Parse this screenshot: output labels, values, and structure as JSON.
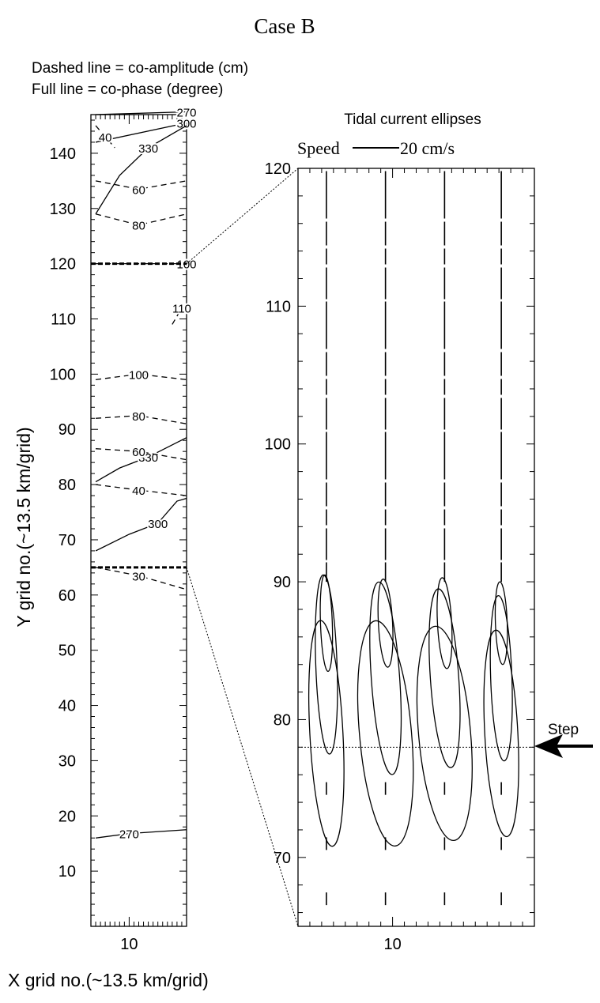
{
  "title": "Case B",
  "legend": {
    "dashed": "Dashed line = co-amplitude (cm)",
    "full": "Full line = co-phase (degree)"
  },
  "right_title": "Tidal current ellipses",
  "speed_key": {
    "label": "Speed",
    "value": "20 cm/s"
  },
  "step_label": "Step",
  "chart_data": [
    {
      "type": "contour",
      "xlabel": "X grid no.(~13.5 km/grid)",
      "ylabel": "Y grid no.(~13.5 km/grid)",
      "xlim": [
        6,
        16
      ],
      "ylim": [
        0,
        147
      ],
      "xticks": [
        10
      ],
      "yticks": [
        10,
        20,
        30,
        40,
        50,
        60,
        70,
        80,
        90,
        100,
        110,
        120,
        130,
        140
      ],
      "zoom_boundaries_y": [
        120,
        65
      ],
      "phase_contours": [
        {
          "label": "270",
          "points": [
            [
              6.5,
              147
            ],
            [
              16,
              147.5
            ]
          ]
        },
        {
          "label": "300",
          "points": [
            [
              6.5,
              142
            ],
            [
              16,
              145.5
            ]
          ]
        },
        {
          "label": "330",
          "points": [
            [
              6.5,
              129
            ],
            [
              9,
              136
            ],
            [
              12,
              141
            ],
            [
              16,
              145
            ]
          ]
        },
        {
          "label": "330",
          "points": [
            [
              6.5,
              80.5
            ],
            [
              9,
              83
            ],
            [
              12,
              85
            ],
            [
              16,
              88.5
            ]
          ]
        },
        {
          "label": "300",
          "points": [
            [
              6.5,
              68
            ],
            [
              10,
              71
            ],
            [
              13,
              73
            ],
            [
              15,
              77
            ],
            [
              16,
              77.5
            ]
          ]
        },
        {
          "label": "270",
          "points": [
            [
              6.5,
              16
            ],
            [
              10,
              16.8
            ],
            [
              16,
              17.5
            ]
          ]
        }
      ],
      "amplitude_contours": [
        {
          "label": "40",
          "points": [
            [
              6.5,
              145
            ],
            [
              7.5,
              143
            ],
            [
              8.5,
              141
            ]
          ]
        },
        {
          "label": "60",
          "points": [
            [
              6.5,
              135
            ],
            [
              11,
              133.5
            ],
            [
              16,
              135
            ]
          ]
        },
        {
          "label": "80",
          "points": [
            [
              6.5,
              129
            ],
            [
              11,
              127
            ],
            [
              16,
              129
            ]
          ]
        },
        {
          "label": "100",
          "points": [
            [
              6.5,
              120
            ],
            [
              16,
              120
            ]
          ]
        },
        {
          "label": "110",
          "points": [
            [
              14.5,
              109
            ],
            [
              15.5,
              112
            ]
          ]
        },
        {
          "label": "100",
          "points": [
            [
              6.5,
              99
            ],
            [
              11,
              100
            ],
            [
              16,
              99
            ]
          ]
        },
        {
          "label": "80",
          "points": [
            [
              6.5,
              92
            ],
            [
              11,
              92.5
            ],
            [
              16,
              91
            ]
          ]
        },
        {
          "label": "60",
          "points": [
            [
              6.5,
              86.5
            ],
            [
              11,
              86
            ],
            [
              16,
              84.5
            ]
          ]
        },
        {
          "label": "40",
          "points": [
            [
              6.5,
              80
            ],
            [
              11,
              79
            ],
            [
              16,
              78
            ]
          ]
        },
        {
          "label": "30",
          "points": [
            [
              6.5,
              65
            ],
            [
              11,
              63.5
            ],
            [
              16,
              61
            ]
          ]
        }
      ]
    },
    {
      "type": "ellipses",
      "xlim": [
        6,
        16
      ],
      "ylim": [
        65,
        120
      ],
      "xticks": [
        10
      ],
      "yticks": [
        70,
        80,
        90,
        100,
        110,
        120
      ],
      "step_y": 78,
      "scale": {
        "label": "Speed",
        "value_cm_s": 20
      },
      "columns_x": [
        7.2,
        9.7,
        12.2,
        14.6
      ],
      "ellipses": [
        {
          "x": 7.2,
          "y": 79,
          "a": 0.7,
          "b": 8.2,
          "tilt": -3
        },
        {
          "x": 7.2,
          "y": 84,
          "a": 0.45,
          "b": 6.5,
          "tilt": -2
        },
        {
          "x": 7.2,
          "y": 87,
          "a": 0.25,
          "b": 3.5,
          "tilt": -2
        },
        {
          "x": 9.7,
          "y": 79,
          "a": 1.1,
          "b": 8.2,
          "tilt": -5
        },
        {
          "x": 9.7,
          "y": 83,
          "a": 0.6,
          "b": 7.0,
          "tilt": -4
        },
        {
          "x": 9.7,
          "y": 87,
          "a": 0.3,
          "b": 3.2,
          "tilt": -3
        },
        {
          "x": 12.2,
          "y": 79,
          "a": 1.1,
          "b": 7.8,
          "tilt": -5
        },
        {
          "x": 12.2,
          "y": 83,
          "a": 0.6,
          "b": 6.5,
          "tilt": -4
        },
        {
          "x": 12.2,
          "y": 87,
          "a": 0.3,
          "b": 3.3,
          "tilt": -3
        },
        {
          "x": 14.6,
          "y": 79,
          "a": 0.7,
          "b": 7.5,
          "tilt": -3
        },
        {
          "x": 14.6,
          "y": 83,
          "a": 0.45,
          "b": 6.0,
          "tilt": -2
        },
        {
          "x": 14.6,
          "y": 87,
          "a": 0.25,
          "b": 3.0,
          "tilt": -2
        }
      ]
    }
  ]
}
